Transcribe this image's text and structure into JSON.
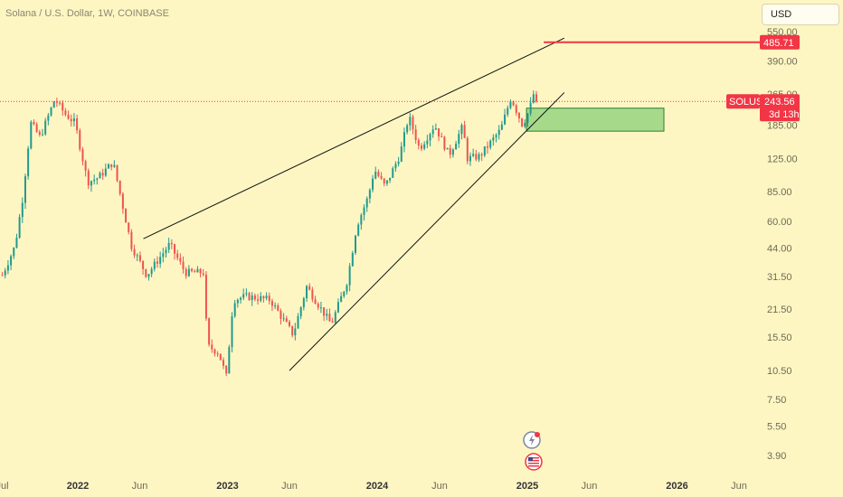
{
  "header": {
    "title": "Solana / U.S. Dollar, 1W, COINBASE"
  },
  "currency": {
    "label": "USD"
  },
  "colors": {
    "up": "#22998d",
    "down": "#ef5350",
    "background": "#fdf6c3",
    "label_red": "#f23645",
    "zone_fill": "#a6d98a",
    "zone_stroke": "#2e7d32"
  },
  "icons": [
    "lightning-icon",
    "us-flag-icon"
  ],
  "chart_data": {
    "type": "candlestick",
    "title": "Solana / U.S. Dollar, 1W, COINBASE",
    "symbol": "SOLUSD",
    "last_price": "243.56",
    "countdown": "3d 13h",
    "target_label": "485.71",
    "y_scale": "log",
    "y_ticks": [
      "550.00",
      "390.00",
      "265.00",
      "185.00",
      "125.00",
      "85.00",
      "60.00",
      "44.00",
      "31.50",
      "21.50",
      "15.50",
      "10.50",
      "7.50",
      "5.50",
      "3.90"
    ],
    "x_ticks": [
      {
        "label": "Jul",
        "date": "2021-07-01",
        "bold": false
      },
      {
        "label": "2022",
        "date": "2022-01-01",
        "bold": true
      },
      {
        "label": "Jun",
        "date": "2022-06-01",
        "bold": false
      },
      {
        "label": "2023",
        "date": "2023-01-01",
        "bold": true
      },
      {
        "label": "Jun",
        "date": "2023-06-01",
        "bold": false
      },
      {
        "label": "2024",
        "date": "2024-01-01",
        "bold": true
      },
      {
        "label": "Jun",
        "date": "2024-06-01",
        "bold": false
      },
      {
        "label": "2025",
        "date": "2025-01-01",
        "bold": true
      },
      {
        "label": "Jun",
        "date": "2025-06-01",
        "bold": false
      },
      {
        "label": "2026",
        "date": "2026-01-01",
        "bold": true
      },
      {
        "label": "Jun",
        "date": "2026-06-01",
        "bold": false
      }
    ],
    "price_anchors": [
      [
        "2021-07-01",
        32
      ],
      [
        "2021-08-01",
        45
      ],
      [
        "2021-08-20",
        80
      ],
      [
        "2021-09-08",
        190
      ],
      [
        "2021-10-01",
        160
      ],
      [
        "2021-11-06",
        250
      ],
      [
        "2021-12-01",
        210
      ],
      [
        "2021-12-25",
        190
      ],
      [
        "2022-01-25",
        95
      ],
      [
        "2022-02-20",
        100
      ],
      [
        "2022-03-28",
        120
      ],
      [
        "2022-05-12",
        45
      ],
      [
        "2022-06-18",
        32
      ],
      [
        "2022-08-13",
        46
      ],
      [
        "2022-09-20",
        33
      ],
      [
        "2022-11-06",
        33
      ],
      [
        "2022-11-12",
        14
      ],
      [
        "2022-12-10",
        13
      ],
      [
        "2022-12-29",
        9.8
      ],
      [
        "2023-01-15",
        24
      ],
      [
        "2023-02-15",
        25
      ],
      [
        "2023-04-15",
        24
      ],
      [
        "2023-06-10",
        16
      ],
      [
        "2023-07-13",
        28
      ],
      [
        "2023-09-11",
        18
      ],
      [
        "2023-10-20",
        30
      ],
      [
        "2023-11-12",
        57
      ],
      [
        "2023-12-10",
        80
      ],
      [
        "2023-12-25",
        110
      ],
      [
        "2024-01-20",
        90
      ],
      [
        "2024-02-25",
        130
      ],
      [
        "2024-03-18",
        205
      ],
      [
        "2024-04-13",
        140
      ],
      [
        "2024-05-20",
        185
      ],
      [
        "2024-06-24",
        130
      ],
      [
        "2024-07-29",
        185
      ],
      [
        "2024-08-05",
        125
      ],
      [
        "2024-09-06",
        128
      ],
      [
        "2024-10-28",
        175
      ],
      [
        "2024-11-22",
        255
      ],
      [
        "2024-12-20",
        185
      ],
      [
        "2025-01-06",
        220
      ],
      [
        "2025-01-19",
        280
      ],
      [
        "2025-01-27",
        243.56
      ]
    ],
    "zone": {
      "x_start": "2024-12-30",
      "x_end": "2025-11-30",
      "y_top": 225,
      "y_bottom": 172
    },
    "horizontal_line": {
      "value": 485.71,
      "x_start": "2025-02-10"
    },
    "dotted_line": {
      "value": 243.56
    },
    "trendlines": [
      {
        "from": [
          "2022-06-10",
          49
        ],
        "to": [
          "2025-04-01",
          510
        ]
      },
      {
        "from": [
          "2023-06-01",
          10.5
        ],
        "to": [
          "2025-04-01",
          270
        ]
      }
    ]
  }
}
